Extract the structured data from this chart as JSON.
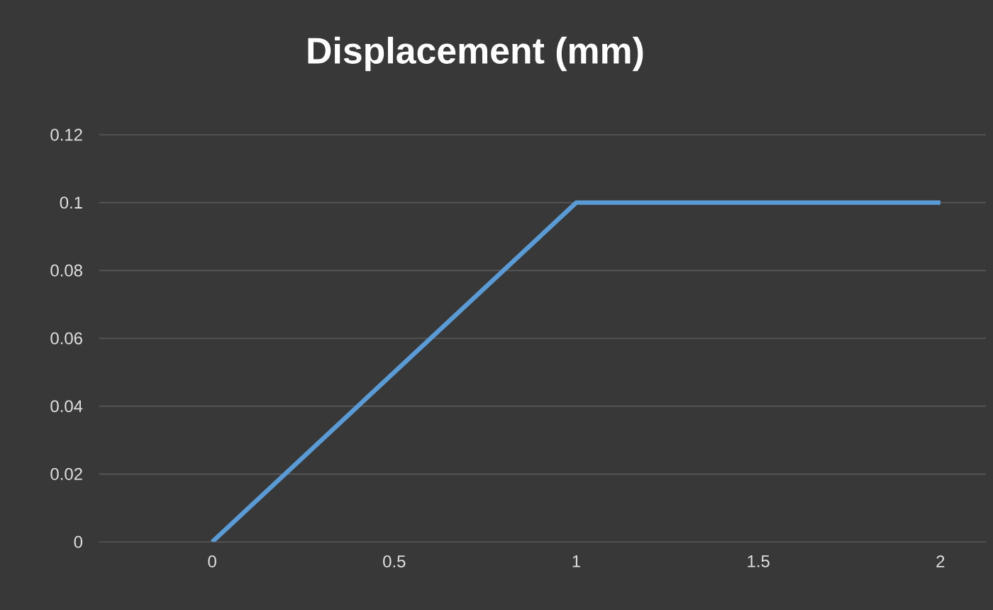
{
  "chart_data": {
    "type": "line",
    "title": "Displacement  (mm)",
    "categories": [
      "0",
      "0.5",
      "1",
      "1.5",
      "2"
    ],
    "values": [
      0,
      0.05,
      0.1,
      0.1,
      0.1
    ],
    "color": "#5b9bd5",
    "ylim": [
      0,
      0.12
    ],
    "yticks": [
      0,
      0.02,
      0.04,
      0.06,
      0.08,
      0.1,
      0.12
    ],
    "grid": "y",
    "marker": "none",
    "line_style": "solid"
  }
}
